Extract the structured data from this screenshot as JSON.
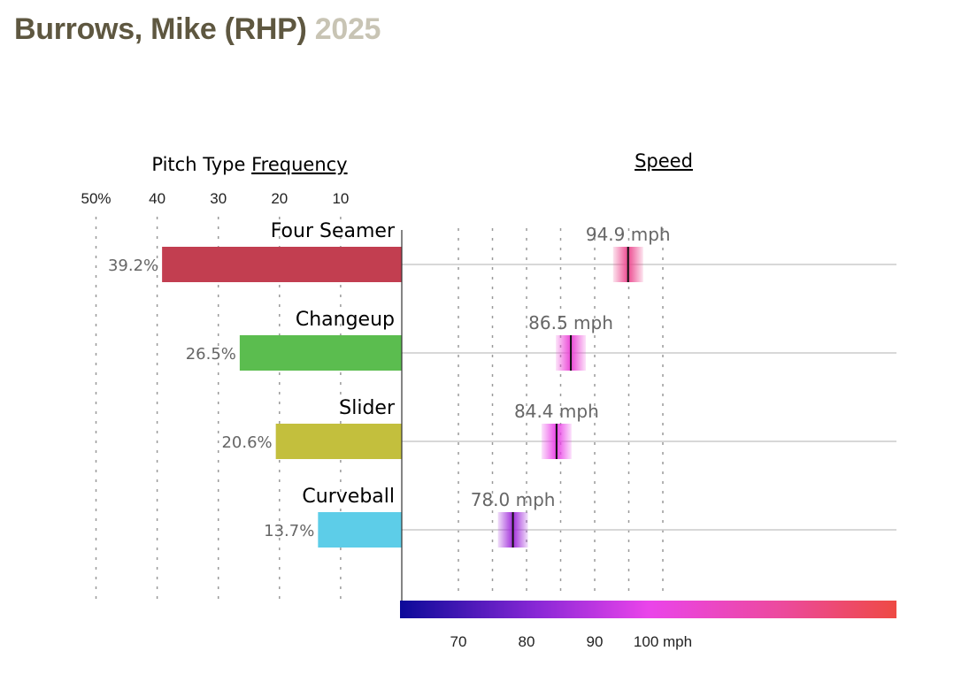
{
  "header": {
    "name": "Burrows, Mike (RHP)",
    "year": "2025"
  },
  "chart_data": {
    "type": "bar",
    "frequency_title_prefix": "Pitch Type ",
    "frequency_title_link": "Frequency",
    "speed_title": "Speed",
    "frequency_ticks": [
      "50%",
      "40",
      "30",
      "20",
      "10"
    ],
    "frequency_tick_values": [
      50,
      40,
      30,
      20,
      10
    ],
    "speed_ticks": [
      "70",
      "80",
      "90",
      "100 mph"
    ],
    "speed_tick_values": [
      70,
      80,
      90,
      100
    ],
    "speed_range": [
      66,
      102
    ],
    "pitches": [
      {
        "name": "Four Seamer",
        "pct": 39.2,
        "pct_label": "39.2%",
        "speed": 94.9,
        "speed_label": "94.9 mph",
        "color": "#c23e50"
      },
      {
        "name": "Changeup",
        "pct": 26.5,
        "pct_label": "26.5%",
        "speed": 86.5,
        "speed_label": "86.5 mph",
        "color": "#5bbd4f"
      },
      {
        "name": "Slider",
        "pct": 20.6,
        "pct_label": "20.6%",
        "speed": 84.4,
        "speed_label": "84.4 mph",
        "color": "#c3bf3d"
      },
      {
        "name": "Curveball",
        "pct": 13.7,
        "pct_label": "13.7%",
        "speed": 78.0,
        "speed_label": "78.0 mph",
        "color": "#5dcde8"
      }
    ],
    "speed_color_stops": [
      {
        "mph": 66,
        "color": "#0c0a99"
      },
      {
        "mph": 76,
        "color": "#8a28d6"
      },
      {
        "mph": 84,
        "color": "#ea44ea"
      },
      {
        "mph": 94,
        "color": "#ec4a9a"
      },
      {
        "mph": 102,
        "color": "#ee4a44"
      }
    ]
  }
}
